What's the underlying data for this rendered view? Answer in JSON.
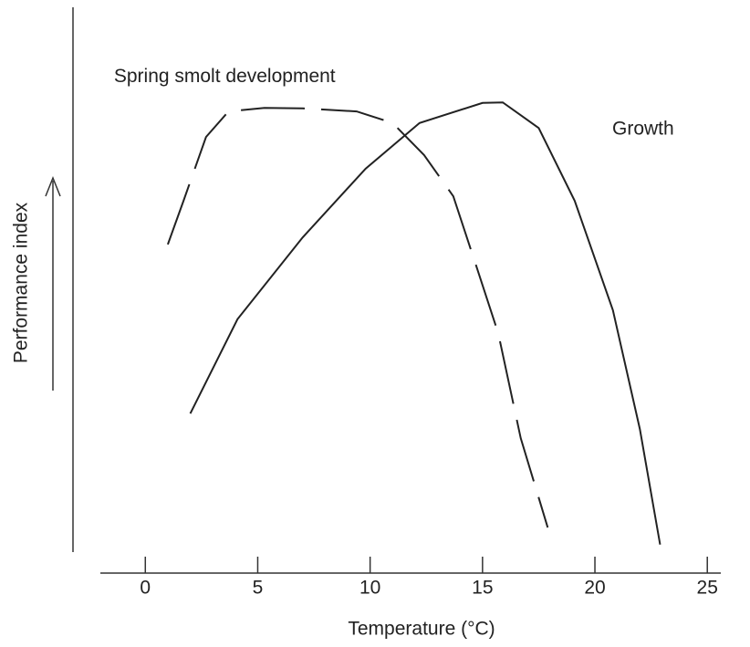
{
  "chart_data": {
    "type": "line",
    "x_label": "Temperature (°C)",
    "y_label": "Performance index",
    "xlim": [
      -2,
      25.6
    ],
    "xticks": [
      0,
      5,
      10,
      15,
      20,
      25
    ],
    "ylim": [
      0,
      100
    ],
    "series": [
      {
        "name": "Spring smolt development",
        "color": "#222222",
        "line_style": "dashed",
        "x": [
          1.0,
          1.7,
          2.7,
          3.7,
          5.3,
          7.0,
          9.4,
          11.0,
          12.4,
          13.7,
          14.7,
          15.7,
          16.7,
          17.9
        ],
        "values": [
          61.3,
          70.0,
          82.7,
          87.8,
          88.5,
          88.4,
          87.8,
          85.5,
          79.1,
          70.9,
          57.3,
          43.6,
          22.7,
          4.9
        ]
      },
      {
        "name": "Growth",
        "color": "#222222",
        "line_style": "solid",
        "x": [
          2.0,
          4.1,
          7.0,
          9.8,
          12.2,
          15.0,
          15.9,
          17.5,
          19.1,
          20.8,
          22.0,
          22.9
        ],
        "values": [
          27.6,
          46.4,
          62.7,
          76.4,
          85.5,
          89.5,
          89.6,
          84.5,
          70.0,
          48.2,
          24.5,
          1.5
        ]
      }
    ]
  }
}
